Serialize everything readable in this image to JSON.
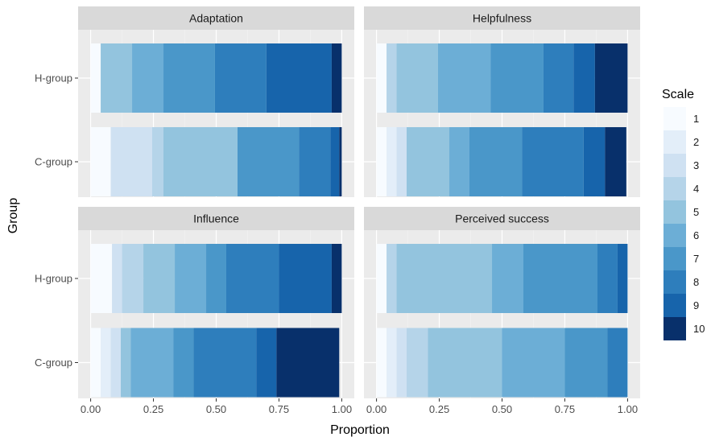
{
  "chart_data": {
    "type": "bar",
    "orientation": "horizontal",
    "stacked": true,
    "xlabel": "Proportion",
    "ylabel": "Group",
    "xlim": [
      0,
      1
    ],
    "x_ticks": [
      "0.00",
      "0.25",
      "0.50",
      "0.75",
      "1.00"
    ],
    "x_tick_values": [
      0,
      0.25,
      0.5,
      0.75,
      1.0
    ],
    "grid": true,
    "legend": {
      "title": "Scale",
      "placement": "right",
      "levels": [
        "1",
        "2",
        "3",
        "4",
        "5",
        "6",
        "7",
        "8",
        "9",
        "10"
      ],
      "colors": [
        "#F7FBFF",
        "#E3EEF9",
        "#CFE1F2",
        "#B5D4E9",
        "#93C4DE",
        "#6CAED6",
        "#4A97C9",
        "#2E7EBC",
        "#1764AB",
        "#08306B"
      ]
    },
    "groups": [
      "H-group",
      "C-group"
    ],
    "panels": [
      {
        "title": "Adaptation",
        "bars": [
          {
            "group": "H-group",
            "segments": [
              0.04,
              0,
              0,
              0,
              0.125,
              0.125,
              0.205,
              0.205,
              0.26,
              0.04
            ]
          },
          {
            "group": "C-group",
            "segments": [
              0.08,
              0,
              0.165,
              0.045,
              0.295,
              0,
              0.245,
              0.125,
              0.035,
              0.04
            ]
          }
        ]
      },
      {
        "title": "Helpfulness",
        "bars": [
          {
            "group": "H-group",
            "segments": [
              0.04,
              0,
              0,
              0.04,
              0.165,
              0.21,
              0.21,
              0.12,
              0.085,
              0.13
            ]
          },
          {
            "group": "C-group",
            "segments": [
              0.04,
              0.04,
              0.04,
              0,
              0.17,
              0.08,
              0.21,
              0.245,
              0.085,
              0.085
            ]
          }
        ]
      },
      {
        "title": "Influence",
        "bars": [
          {
            "group": "H-group",
            "segments": [
              0.085,
              0,
              0.04,
              0.085,
              0.125,
              0.125,
              0.08,
              0.21,
              0.21,
              0.04
            ]
          },
          {
            "group": "C-group",
            "segments": [
              0.04,
              0.04,
              0.04,
              0,
              0.04,
              0.17,
              0.08,
              0.25,
              0.08,
              0.25
            ]
          }
        ]
      },
      {
        "title": "Perceived success",
        "bars": [
          {
            "group": "H-group",
            "segments": [
              0.04,
              0,
              0,
              0.04,
              0.38,
              0.125,
              0.295,
              0.08,
              0.04,
              0
            ]
          },
          {
            "group": "C-group",
            "segments": [
              0.04,
              0.04,
              0.04,
              0.085,
              0.295,
              0.25,
              0.17,
              0.08,
              0,
              0
            ]
          }
        ]
      }
    ]
  }
}
